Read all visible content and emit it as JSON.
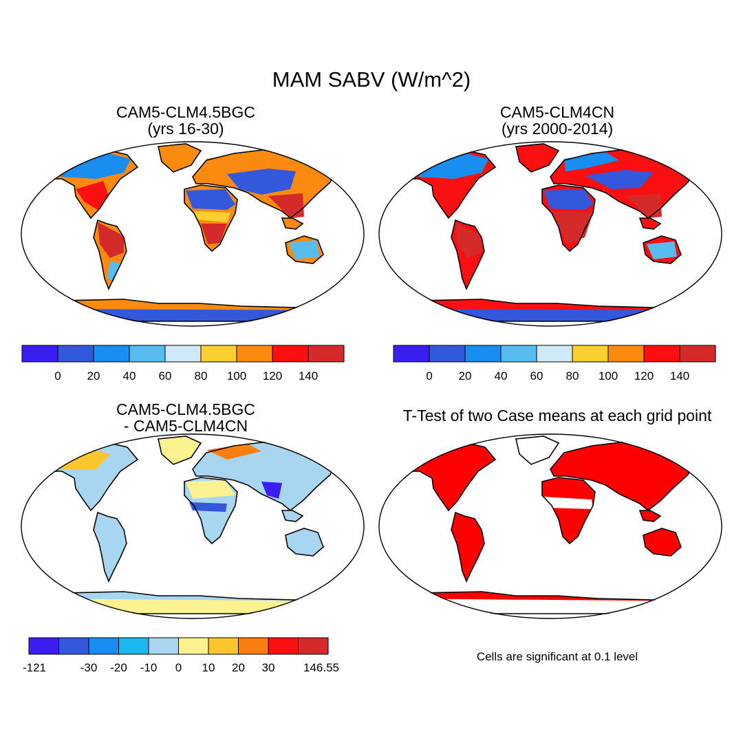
{
  "title": "MAM SABV (W/m^2)",
  "panels": {
    "a": {
      "title_line1": "CAM5-CLM4.5BGC",
      "title_line2": "(yrs 16-30)"
    },
    "b": {
      "title_line1": "CAM5-CLM4CN",
      "title_line2": "(yrs 2000-2014)"
    },
    "c": {
      "title_line1": "CAM5-CLM4.5BGC",
      "title_line2": "- CAM5-CLM4CN"
    },
    "d": {
      "title": "T-Test of two Case means at each grid point",
      "note": "Cells are significant at 0.1 level"
    }
  },
  "colorbars": {
    "absolute": {
      "colors": [
        "#3b1ff0",
        "#3358dc",
        "#1a8ef0",
        "#58bcee",
        "#cfe9f8",
        "#fbcf30",
        "#fb8a10",
        "#fa1010",
        "#d42a2a"
      ],
      "labels": [
        "0",
        "20",
        "40",
        "60",
        "80",
        "100",
        "120",
        "140"
      ]
    },
    "difference": {
      "colors": [
        "#3b1ff0",
        "#3358dc",
        "#1a8ef0",
        "#1bb8f0",
        "#a8d6f0",
        "#fdf291",
        "#fbc62e",
        "#fb7e10",
        "#fa1010",
        "#d42a2a"
      ],
      "labels": [
        "-121",
        "-30",
        "-20",
        "-10",
        "0",
        "10",
        "20",
        "30",
        "146.55"
      ]
    },
    "ttest": {
      "significant_color": "#ff0000"
    }
  }
}
